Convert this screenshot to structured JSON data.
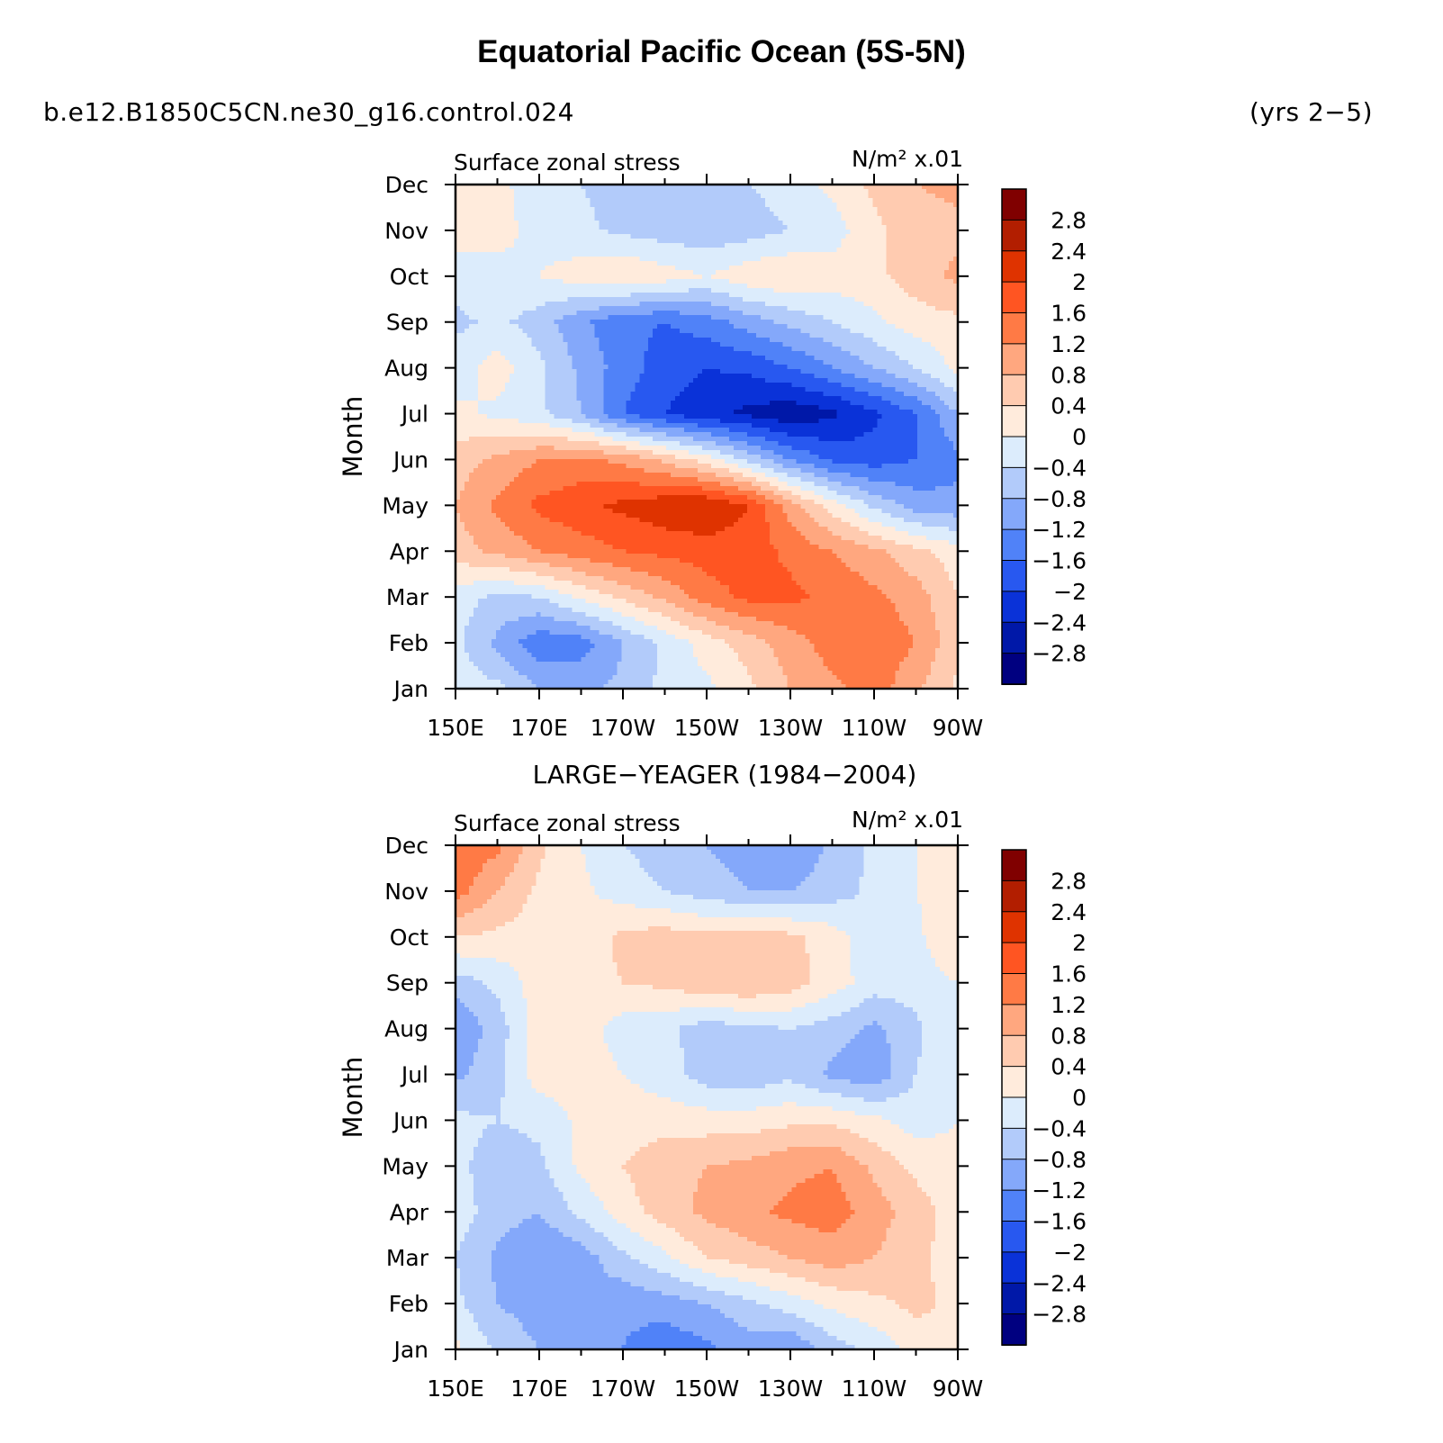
{
  "title": "Equatorial Pacific Ocean (5S-5N)",
  "case_name": "b.e12.B1850C5CN.ne30_g16.control.024",
  "years": "(yrs 2−5)",
  "colorbar": {
    "labels": [
      "2.8",
      "2.4",
      "2",
      "1.6",
      "1.2",
      "0.8",
      "0.4",
      "0",
      "−0.4",
      "−0.8",
      "−1.2",
      "−1.6",
      "−2",
      "−2.4",
      "−2.8"
    ],
    "colors": [
      "#800000",
      "#b21e00",
      "#df3300",
      "#ff5522",
      "#ff7a45",
      "#ffa77f",
      "#ffcbb0",
      "#ffebdc",
      "#dcecfc",
      "#b2cbfa",
      "#84a8fa",
      "#5082f8",
      "#2858f0",
      "#0a32d8",
      "#0018a8",
      "#000080"
    ]
  },
  "chart_data": [
    {
      "type": "heatmap",
      "panel_title": "",
      "left_label": "Surface zonal stress",
      "right_label": "N/m² x.01",
      "ylabel": "Month",
      "x_ticks": [
        "150E",
        "170E",
        "170W",
        "150W",
        "130W",
        "110W",
        "90W"
      ],
      "y_ticks": [
        "Jan",
        "Feb",
        "Mar",
        "Apr",
        "May",
        "Jun",
        "Jul",
        "Aug",
        "Sep",
        "Oct",
        "Nov",
        "Dec"
      ],
      "x_lon": [
        150,
        160,
        170,
        180,
        190,
        200,
        210,
        220,
        230,
        240,
        250,
        260,
        270
      ],
      "month_index": [
        0,
        1,
        2,
        3,
        4,
        5,
        6,
        7,
        8,
        9,
        10,
        11
      ],
      "levels": [
        -2.8,
        -2.4,
        -2.0,
        -1.6,
        -1.2,
        -0.8,
        -0.4,
        0,
        0.4,
        0.8,
        1.2,
        1.6,
        2.0,
        2.4,
        2.8
      ],
      "values": [
        [
          -0.2,
          -0.3,
          -0.8,
          -0.9,
          -0.7,
          -0.3,
          -0.1,
          0.3,
          0.8,
          1.1,
          1.4,
          0.9,
          0.3
        ],
        [
          -0.3,
          -0.9,
          -1.5,
          -1.4,
          -0.8,
          -0.3,
          0.2,
          0.6,
          1.0,
          1.4,
          1.5,
          1.2,
          0.5
        ],
        [
          -0.2,
          -0.5,
          -0.4,
          0.1,
          0.5,
          0.9,
          1.4,
          1.7,
          1.7,
          1.5,
          1.3,
          1.0,
          0.4
        ],
        [
          0.6,
          0.9,
          1.2,
          1.4,
          1.6,
          1.7,
          1.8,
          1.8,
          1.5,
          1.2,
          0.9,
          0.5,
          0.2
        ],
        [
          0.8,
          1.3,
          1.7,
          1.9,
          2.1,
          2.3,
          2.4,
          2.0,
          1.0,
          0.2,
          -0.5,
          -1.0,
          -1.1
        ],
        [
          0.6,
          0.9,
          1.2,
          1.3,
          1.1,
          0.7,
          0.2,
          -0.5,
          -1.2,
          -1.7,
          -1.8,
          -1.6,
          -1.3
        ],
        [
          0.1,
          -0.1,
          -0.3,
          -0.8,
          -1.6,
          -2.0,
          -2.3,
          -2.5,
          -2.7,
          -2.5,
          -2.1,
          -1.6,
          -0.8
        ],
        [
          -0.2,
          0.2,
          -0.3,
          -0.9,
          -1.4,
          -1.8,
          -2.0,
          -1.9,
          -1.6,
          -1.2,
          -0.8,
          -0.4,
          0.1
        ],
        [
          -0.5,
          -0.3,
          -0.6,
          -1.1,
          -1.5,
          -1.6,
          -1.4,
          -1.0,
          -0.7,
          -0.4,
          -0.1,
          0.2,
          0.3
        ],
        [
          -0.2,
          -0.1,
          0.0,
          0.2,
          0.4,
          0.2,
          0.0,
          0.3,
          0.4,
          0.2,
          0.3,
          0.6,
          0.9
        ],
        [
          0.2,
          0.1,
          -0.1,
          -0.3,
          -0.5,
          -0.6,
          -0.7,
          -0.6,
          -0.4,
          -0.2,
          0.3,
          0.6,
          0.7
        ],
        [
          0.3,
          0.1,
          -0.2,
          -0.4,
          -0.6,
          -0.7,
          -0.6,
          -0.4,
          -0.2,
          0.1,
          0.5,
          0.8,
          0.9
        ]
      ]
    },
    {
      "type": "heatmap",
      "panel_title": "LARGE−YEAGER (1984−2004)",
      "left_label": "Surface zonal stress",
      "right_label": "N/m² x.01",
      "ylabel": "Month",
      "x_ticks": [
        "150E",
        "170E",
        "170W",
        "150W",
        "130W",
        "110W",
        "90W"
      ],
      "y_ticks": [
        "Jan",
        "Feb",
        "Mar",
        "Apr",
        "May",
        "Jun",
        "Jul",
        "Aug",
        "Sep",
        "Oct",
        "Nov",
        "Dec"
      ],
      "x_lon": [
        150,
        160,
        170,
        180,
        190,
        200,
        210,
        220,
        230,
        240,
        250,
        260,
        270
      ],
      "month_index": [
        0,
        1,
        2,
        3,
        4,
        5,
        6,
        7,
        8,
        9,
        10,
        11
      ],
      "levels": [
        -2.8,
        -2.4,
        -2.0,
        -1.6,
        -1.2,
        -0.8,
        -0.4,
        0,
        0.4,
        0.8,
        1.2,
        1.6,
        2.0,
        2.4,
        2.8
      ],
      "values": [
        [
          0.1,
          -0.5,
          -0.8,
          -0.9,
          -1.2,
          -1.5,
          -1.3,
          -1.0,
          -1.2,
          -0.6,
          -0.3,
          0.2,
          0.3
        ],
        [
          -0.3,
          -0.8,
          -1.0,
          -0.9,
          -1.1,
          -1.0,
          -0.8,
          -0.5,
          -0.2,
          0.1,
          0.3,
          0.5,
          0.3
        ],
        [
          -0.4,
          -0.9,
          -1.2,
          -1.0,
          -0.5,
          -0.1,
          0.4,
          0.6,
          0.8,
          1.0,
          0.8,
          0.5,
          0.2
        ],
        [
          -0.2,
          -0.6,
          -0.8,
          -0.3,
          0.2,
          0.6,
          0.9,
          1.1,
          1.3,
          1.4,
          1.0,
          0.6,
          0.2
        ],
        [
          -0.3,
          -0.6,
          -0.5,
          0.1,
          0.4,
          0.7,
          0.8,
          0.9,
          1.1,
          1.2,
          0.7,
          0.3,
          0.1
        ],
        [
          -0.3,
          -0.4,
          -0.3,
          0.1,
          0.2,
          0.2,
          0.2,
          0.2,
          0.3,
          0.3,
          0.1,
          -0.2,
          0.0
        ],
        [
          -0.9,
          -0.5,
          0.2,
          0.2,
          0.0,
          -0.2,
          -0.6,
          -0.7,
          -0.5,
          -0.9,
          -1.1,
          -0.4,
          0.0
        ],
        [
          -1.2,
          -0.6,
          0.2,
          0.2,
          -0.2,
          -0.3,
          -0.6,
          -0.5,
          -0.4,
          -0.6,
          -0.9,
          -0.5,
          0.0
        ],
        [
          -0.6,
          -0.3,
          0.2,
          0.3,
          0.4,
          0.5,
          0.7,
          0.8,
          0.6,
          0.2,
          -0.2,
          -0.2,
          0.0
        ],
        [
          0.4,
          0.3,
          0.2,
          0.1,
          0.5,
          0.6,
          0.5,
          0.6,
          0.5,
          0.2,
          -0.3,
          -0.1,
          0.4
        ],
        [
          1.4,
          0.8,
          0.3,
          0.1,
          -0.2,
          -0.4,
          -0.6,
          -0.8,
          -0.8,
          -0.6,
          -0.3,
          0.0,
          0.2
        ],
        [
          1.5,
          1.3,
          0.5,
          0.0,
          -0.4,
          -0.6,
          -0.8,
          -1.0,
          -1.2,
          -0.7,
          -0.3,
          0.0,
          0.1
        ]
      ]
    }
  ]
}
